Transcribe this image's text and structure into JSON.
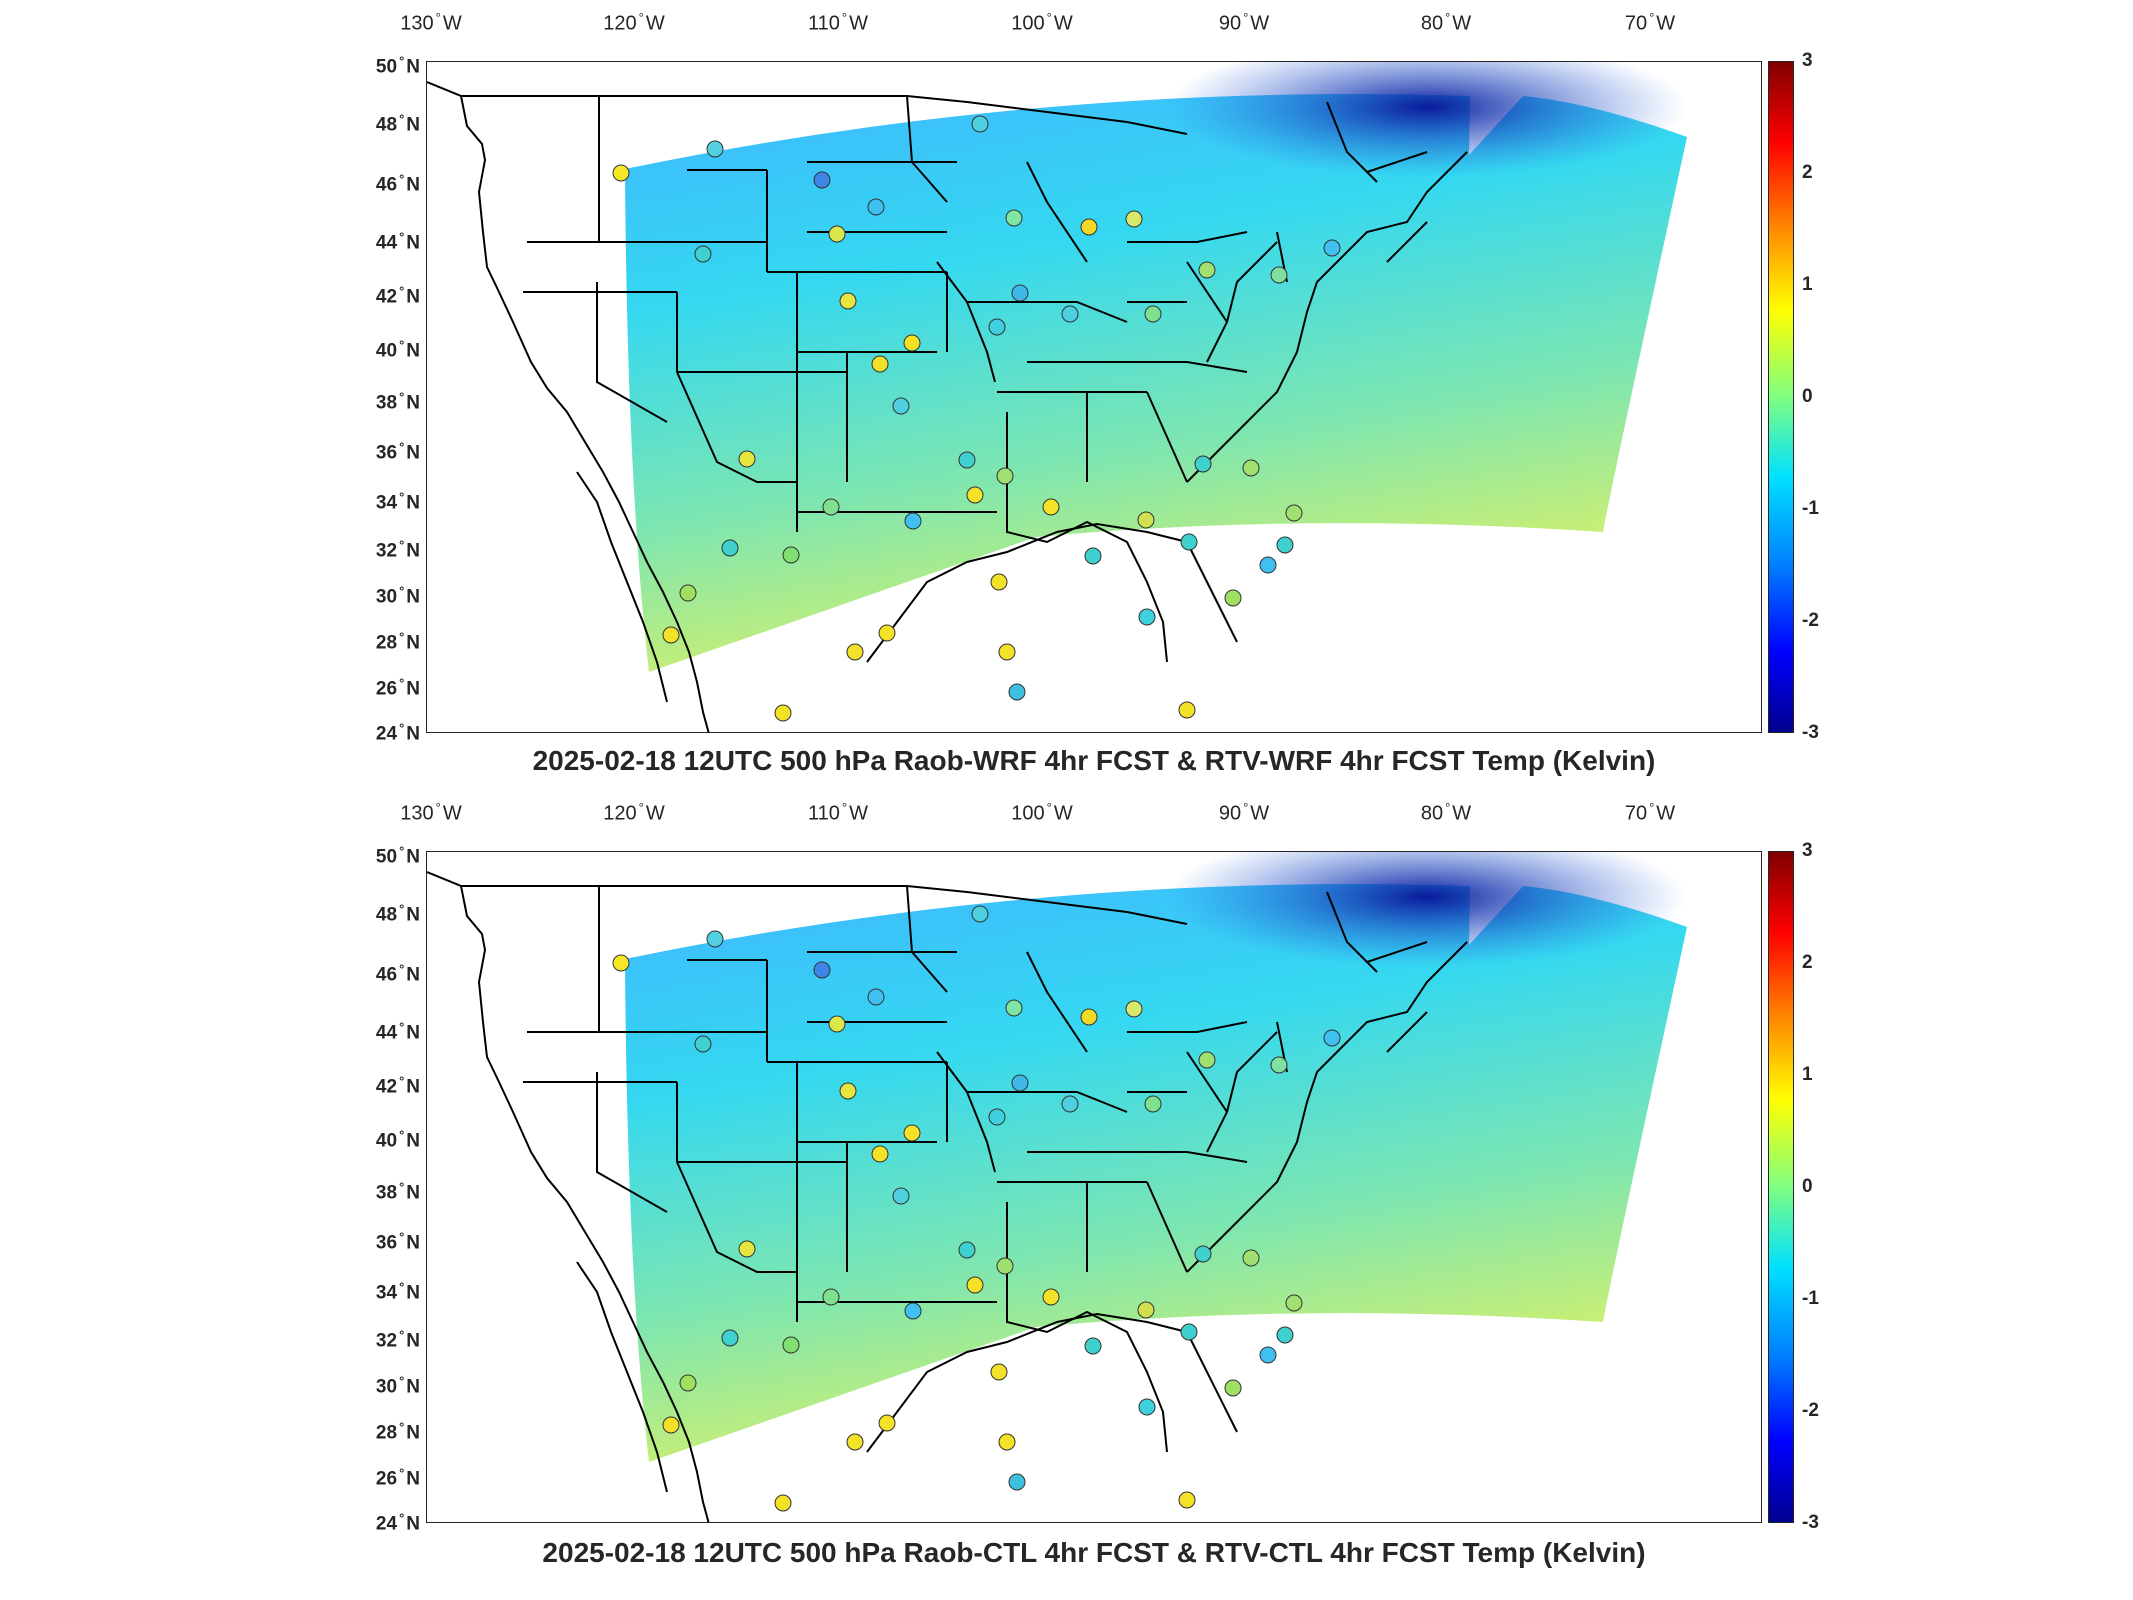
{
  "lon_labels": [
    {
      "value": "130",
      "dir": "W"
    },
    {
      "value": "120",
      "dir": "W"
    },
    {
      "value": "110",
      "dir": "W"
    },
    {
      "value": "100",
      "dir": "W"
    },
    {
      "value": "90",
      "dir": "W"
    },
    {
      "value": "80",
      "dir": "W"
    },
    {
      "value": "70",
      "dir": "W"
    }
  ],
  "lat_labels": [
    {
      "value": "50",
      "dir": "N"
    },
    {
      "value": "48",
      "dir": "N"
    },
    {
      "value": "46",
      "dir": "N"
    },
    {
      "value": "44",
      "dir": "N"
    },
    {
      "value": "42",
      "dir": "N"
    },
    {
      "value": "40",
      "dir": "N"
    },
    {
      "value": "38",
      "dir": "N"
    },
    {
      "value": "36",
      "dir": "N"
    },
    {
      "value": "34",
      "dir": "N"
    },
    {
      "value": "32",
      "dir": "N"
    },
    {
      "value": "30",
      "dir": "N"
    },
    {
      "value": "28",
      "dir": "N"
    },
    {
      "value": "26",
      "dir": "N"
    },
    {
      "value": "24",
      "dir": "N"
    }
  ],
  "degree_symbol": "°",
  "colorbar": {
    "ticks": [
      "3",
      "2",
      "1",
      "0",
      "-1",
      "-2",
      "-3"
    ],
    "range": [
      -3,
      3
    ],
    "colormap": "jet"
  },
  "panels": [
    {
      "title": "2025-02-18 12UTC 500 hPa Raob-WRF 4hr FCST & RTV-WRF 4hr FCST Temp (Kelvin)"
    },
    {
      "title": "2025-02-18 12UTC 500 hPa Raob-CTL 4hr FCST & RTV-CTL 4hr FCST Temp (Kelvin)"
    }
  ],
  "colors": {
    "background": "#ffffff",
    "outline": "#000000",
    "text": "#262626"
  }
}
